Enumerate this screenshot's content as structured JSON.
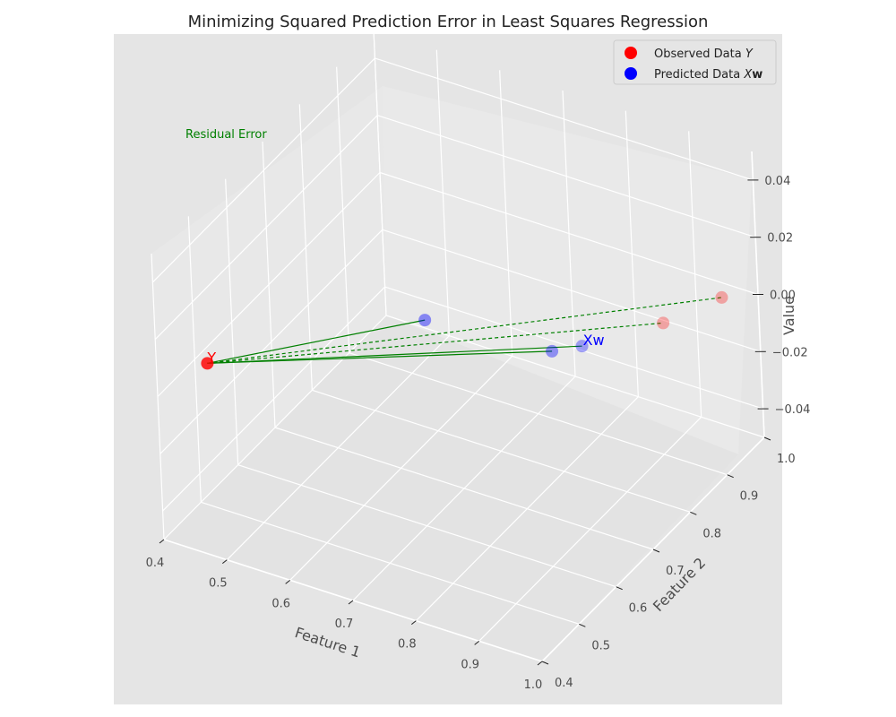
{
  "chart_data": {
    "type": "scatter",
    "projection": "3d",
    "title": "Minimizing Squared Prediction Error in Least Squares Regression",
    "xlabel": "Feature 1",
    "ylabel": "Feature 2",
    "zlabel": "Value",
    "xlim": [
      0.4,
      1.0
    ],
    "ylim": [
      0.4,
      1.0
    ],
    "zlim": [
      -0.05,
      0.05
    ],
    "x_ticks": [
      "0.4",
      "0.5",
      "0.6",
      "0.7",
      "0.8",
      "0.9",
      "1.0"
    ],
    "y_ticks": [
      "0.4",
      "0.5",
      "0.6",
      "0.7",
      "0.8",
      "0.9",
      "1.0"
    ],
    "z_ticks": [
      "−0.04",
      "−0.02",
      "0.00",
      "0.02",
      "0.04"
    ],
    "grid": true,
    "legend_position": "top-right",
    "series": [
      {
        "name": "Observed Data Y",
        "color": "#ff0000",
        "points": [
          {
            "x": 0.42,
            "y": 0.5,
            "z": 0.0
          },
          {
            "x": 0.92,
            "y": 0.88,
            "z": 0.0
          },
          {
            "x": 0.96,
            "y": 0.97,
            "z": 0.0
          }
        ]
      },
      {
        "name": "Predicted Data Xw",
        "color": "#0000ff",
        "points": [
          {
            "x": 0.63,
            "y": 0.73,
            "z": 0.0
          },
          {
            "x": 0.82,
            "y": 0.75,
            "z": 0.0
          },
          {
            "x": 0.85,
            "y": 0.78,
            "z": 0.0
          }
        ]
      }
    ],
    "residual_line": {
      "color": "#008000",
      "from_index": 0
    },
    "annotations": {
      "observed_label": "Y",
      "predicted_label": "Xw",
      "residual_label": "Residual Error"
    }
  },
  "legend": {
    "observed_prefix": "Observed Data ",
    "observed_symbol": "Y",
    "predicted_prefix": "Predicted Data ",
    "predicted_symbol_x": "X",
    "predicted_symbol_w": "w"
  }
}
